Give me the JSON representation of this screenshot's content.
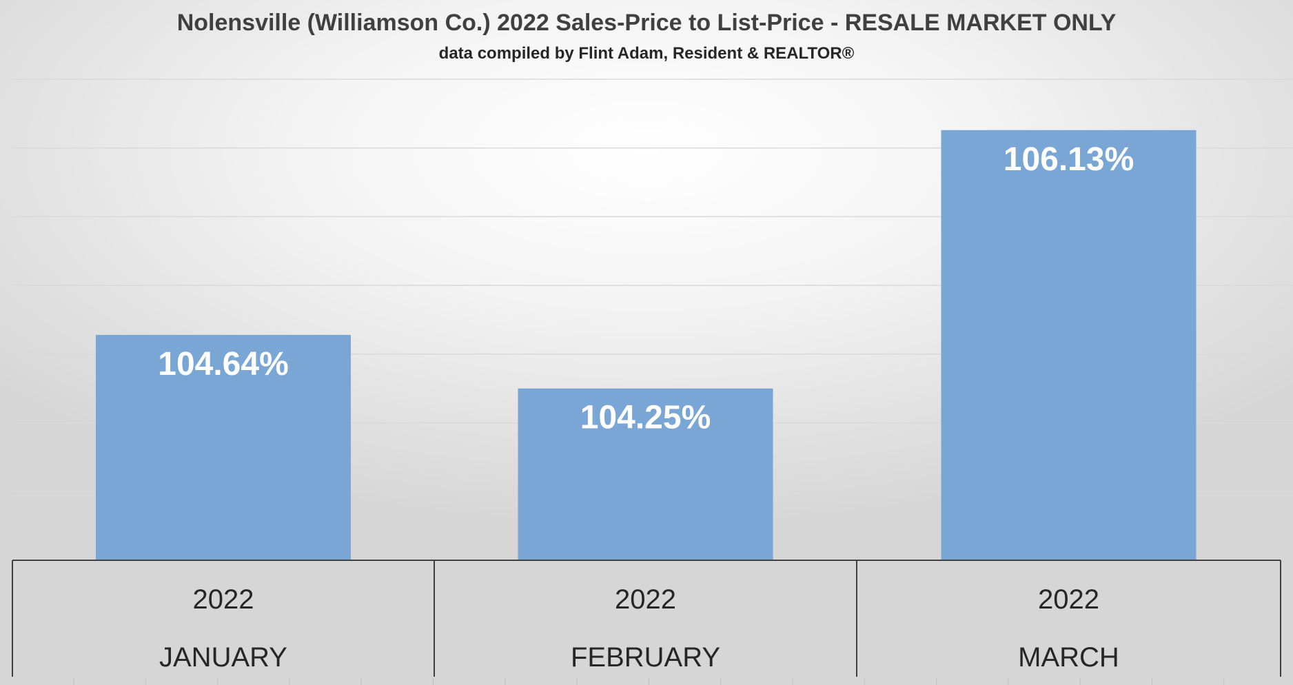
{
  "chart_data": {
    "type": "bar",
    "title": "Nolensville (Williamson Co.) 2022 Sales-Price to List-Price - RESALE MARKET ONLY",
    "subtitle": "data compiled by Flint Adam, Resident & REALTOR®",
    "categories": [
      {
        "year": "2022",
        "month": "JANUARY"
      },
      {
        "year": "2022",
        "month": "FEBRUARY"
      },
      {
        "year": "2022",
        "month": "MARCH"
      }
    ],
    "values": [
      104.64,
      104.25,
      106.13
    ],
    "data_labels": [
      "104.64%",
      "104.25%",
      "106.13%"
    ],
    "ylim": [
      103.0,
      106.5
    ],
    "gridlines": [
      103.5,
      104.0,
      104.5,
      105.0,
      105.5,
      106.0,
      106.5
    ],
    "bar_color": "#7aa6d6",
    "grid": true,
    "legend": "none",
    "xlabel": "",
    "ylabel": ""
  }
}
